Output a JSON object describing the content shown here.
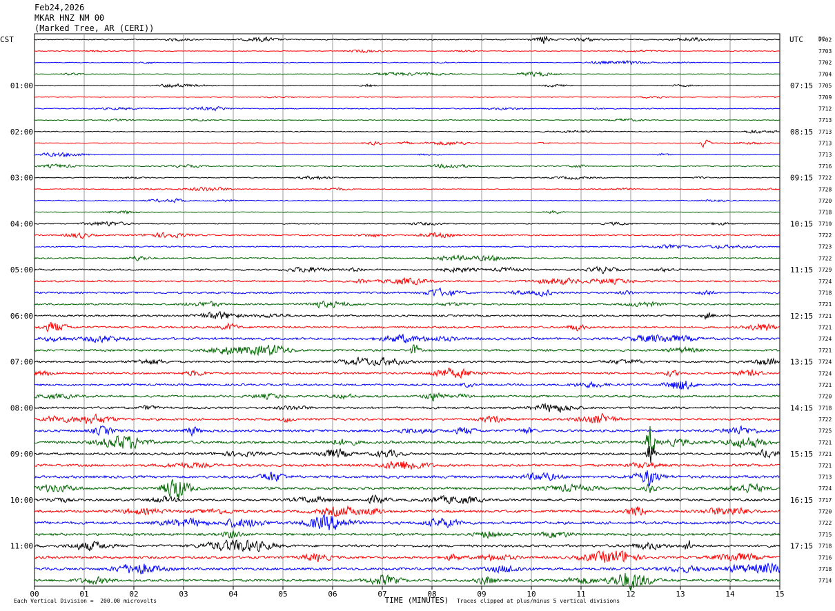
{
  "header": {
    "date": "Feb24,2026",
    "station": "MKAR HNZ NM 00",
    "location": "(Marked Tree, AR (CERI))"
  },
  "chart_data": {
    "type": "line",
    "title": "",
    "xlabel": "TIME (MINUTES)",
    "ylabel": "",
    "xlim": [
      0,
      15
    ],
    "x_ticks": [
      "00",
      "01",
      "02",
      "03",
      "04",
      "05",
      "06",
      "07",
      "08",
      "09",
      "10",
      "11",
      "12",
      "13",
      "14",
      "15"
    ],
    "left_axis_label": "CST",
    "right_axis_label": "UTC",
    "right_corner_label": "DC",
    "left_time_labels": [
      "01:00",
      "02:00",
      "03:00",
      "04:00",
      "05:00",
      "06:00",
      "07:00",
      "08:00",
      "09:00",
      "10:00",
      "11:00"
    ],
    "right_time_labels": [
      "07:15",
      "08:15",
      "09:15",
      "10:15",
      "11:15",
      "12:15",
      "13:15",
      "14:15",
      "15:15",
      "16:15",
      "17:15"
    ],
    "trace_colors": [
      "#000000",
      "#ff0000",
      "#0000ff",
      "#006400"
    ],
    "trace_dc_values": [
      "7702",
      "7703",
      "7702",
      "7704",
      "7705",
      "7709",
      "7712",
      "7713",
      "7713",
      "7713",
      "7713",
      "7716",
      "7722",
      "7728",
      "7720",
      "7718",
      "7719",
      "7722",
      "7723",
      "7722",
      "7729",
      "7724",
      "7718",
      "7721",
      "7721",
      "7721",
      "7724",
      "7721",
      "7724",
      "7724",
      "7721",
      "7720",
      "7718",
      "7722",
      "7725",
      "7721",
      "7721",
      "7721",
      "7713",
      "7724",
      "7717",
      "7720",
      "7722",
      "7715",
      "7718",
      "7716",
      "7718",
      "7714"
    ],
    "trace_amplitudes": [
      0.9,
      0.6,
      0.6,
      0.6,
      0.7,
      0.6,
      0.8,
      0.7,
      0.8,
      0.7,
      0.6,
      0.9,
      0.8,
      0.7,
      0.8,
      0.7,
      0.9,
      1.1,
      1.1,
      1.2,
      1.4,
      1.5,
      1.6,
      1.4,
      1.6,
      1.8,
      2.0,
      1.8,
      1.6,
      1.7,
      1.8,
      1.9,
      1.8,
      1.9,
      2.1,
      2.3,
      2.0,
      2.2,
      2.2,
      2.3,
      2.0,
      2.2,
      2.3,
      2.1,
      2.1,
      2.2,
      2.3,
      2.2
    ],
    "notable_events": [
      {
        "trace": 0,
        "minute": 10.25,
        "amplitude": 8
      },
      {
        "trace": 9,
        "minute": 13.5,
        "amplitude": 8
      },
      {
        "trace": 27,
        "minute": 7.65,
        "amplitude": 10
      },
      {
        "trace": 35,
        "minute": 12.4,
        "amplitude": 30
      },
      {
        "trace": 36,
        "minute": 12.4,
        "amplitude": 18
      },
      {
        "trace": 38,
        "minute": 12.4,
        "amplitude": 9
      },
      {
        "trace": 39,
        "minute": 12.4,
        "amplitude": 9
      },
      {
        "trace": 44,
        "minute": 13.15,
        "amplitude": 10
      }
    ]
  },
  "footer": {
    "scale": "Each Vertical Division =  200.00 microvolts",
    "clip_note": "Traces clipped at plus/minus 5 vertical divisions"
  }
}
